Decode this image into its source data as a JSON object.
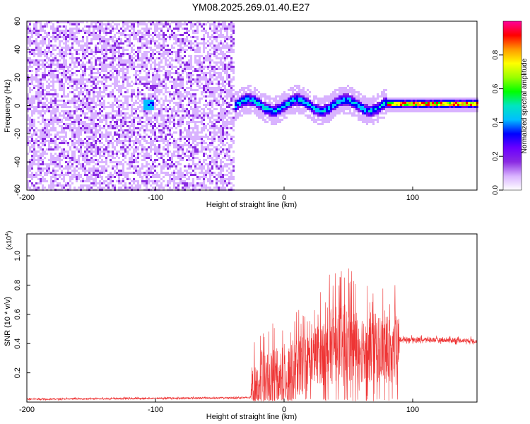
{
  "chart_data": [
    {
      "type": "heatmap",
      "title": "YM08.2025.269.01.40.E27",
      "xlabel": "Height of straight line (km)",
      "ylabel": "Frequency (Hz)",
      "xlim": [
        -200,
        150
      ],
      "ylim": [
        -60,
        60
      ],
      "xticks": [
        -200,
        -100,
        0,
        100
      ],
      "yticks": [
        -60,
        -40,
        -20,
        0,
        20,
        40,
        60
      ],
      "colorbar": {
        "label": "Normalized spectral amplitude",
        "range": [
          0,
          1
        ],
        "ticks": [
          0.0,
          0.2,
          0.4,
          0.6,
          0.8
        ],
        "colors": [
          "#ffffff",
          "#d9b3ff",
          "#8a2be2",
          "#6a00ff",
          "#0000ff",
          "#00bfff",
          "#00e5c0",
          "#00ff00",
          "#9aff00",
          "#ffff00",
          "#ff9900",
          "#ff0000",
          "#ff0099"
        ]
      },
      "regions": [
        {
          "x_from": -200,
          "x_to": -40,
          "description_level": 0.15
        },
        {
          "x_from": -40,
          "x_to": 80,
          "center_hz": 1,
          "max_level": 0.45
        },
        {
          "x_from": 80,
          "x_to": 150,
          "center_hz": 1.5,
          "max_level": 0.95
        }
      ]
    },
    {
      "type": "line",
      "xlabel": "Height of straight line (km)",
      "ylabel": "SNR (10 * v/v)",
      "multiplier_label": "(x10",
      "multiplier_exp": "4",
      "multiplier_close": ")",
      "xlim": [
        -200,
        150
      ],
      "ylim": [
        0,
        1.15
      ],
      "xticks": [
        -200,
        -100,
        0,
        100
      ],
      "yticks": [
        0.2,
        0.4,
        0.6,
        0.8,
        1.0
      ],
      "color": "#ee3333",
      "envelope": [
        {
          "x": -200,
          "base": 0.02,
          "amp": 0.01
        },
        {
          "x": -26,
          "base": 0.03,
          "amp": 0.01
        },
        {
          "x": -25,
          "base": 0.1,
          "amp": 0.3
        },
        {
          "x": -10,
          "base": 0.15,
          "amp": 0.4
        },
        {
          "x": 5,
          "base": 0.2,
          "amp": 0.45
        },
        {
          "x": 20,
          "base": 0.3,
          "amp": 0.35
        },
        {
          "x": 40,
          "base": 0.4,
          "amp": 0.55
        },
        {
          "x": 60,
          "base": 0.38,
          "amp": 0.5
        },
        {
          "x": 89,
          "base": 0.35,
          "amp": 0.45
        },
        {
          "x": 90,
          "base": 0.43,
          "amp": 0.03
        },
        {
          "x": 150,
          "base": 0.42,
          "amp": 0.03
        }
      ]
    }
  ]
}
